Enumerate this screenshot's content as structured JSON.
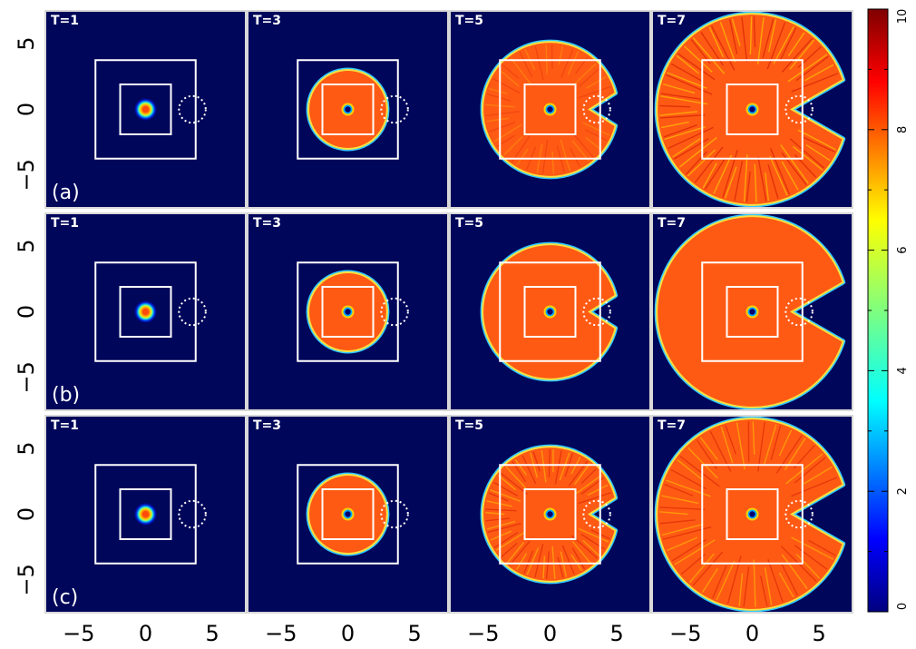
{
  "chart_data": {
    "type": "heatmap",
    "title": "",
    "xlabel": "",
    "ylabel": "",
    "rows": [
      {
        "label": "(a)",
        "panels": [
          {
            "time_label": "T=1",
            "disk_radius": 0.85,
            "pacman": false,
            "texture": "none"
          },
          {
            "time_label": "T=3",
            "disk_radius": 2.95,
            "pacman": true,
            "texture": "none"
          },
          {
            "time_label": "T=5",
            "disk_radius": 5.05,
            "pacman": true,
            "texture": "light"
          },
          {
            "time_label": "T=7",
            "disk_radius": 7.15,
            "pacman": true,
            "texture": "strong"
          }
        ]
      },
      {
        "label": "(b)",
        "panels": [
          {
            "time_label": "T=1",
            "disk_radius": 0.85,
            "pacman": false,
            "texture": "none"
          },
          {
            "time_label": "T=3",
            "disk_radius": 2.95,
            "pacman": true,
            "texture": "none"
          },
          {
            "time_label": "T=5",
            "disk_radius": 5.05,
            "pacman": true,
            "texture": "none"
          },
          {
            "time_label": "T=7",
            "disk_radius": 7.15,
            "pacman": true,
            "texture": "none"
          }
        ]
      },
      {
        "label": "(c)",
        "panels": [
          {
            "time_label": "T=1",
            "disk_radius": 0.85,
            "pacman": false,
            "texture": "none"
          },
          {
            "time_label": "T=3",
            "disk_radius": 2.95,
            "pacman": true,
            "texture": "none"
          },
          {
            "time_label": "T=5",
            "disk_radius": 5.05,
            "pacman": true,
            "texture": "medium"
          },
          {
            "time_label": "T=7",
            "disk_radius": 7.15,
            "pacman": true,
            "texture": "medium"
          }
        ]
      }
    ],
    "x_range": [
      -7.5,
      7.5
    ],
    "y_range": [
      -7.5,
      7.5
    ],
    "x_ticks": [
      -5,
      0,
      5
    ],
    "x_tick_labels": [
      "−5",
      "0",
      "5"
    ],
    "y_ticks": [
      5,
      0,
      -5
    ],
    "y_tick_labels": [
      "5",
      "0",
      "−5"
    ],
    "outer_square_half": 3.75,
    "inner_square_half": 1.9,
    "obstacle": {
      "x": 3.5,
      "y": 0,
      "r": 1.0
    },
    "colorbar": {
      "min": 0,
      "max": 10,
      "ticks": [
        0,
        2,
        4,
        6,
        8,
        10
      ],
      "tick_labels": [
        "0",
        "2",
        "4",
        "6",
        "8",
        "10"
      ],
      "colormap": "jet"
    },
    "grid": false,
    "legend": "none"
  }
}
